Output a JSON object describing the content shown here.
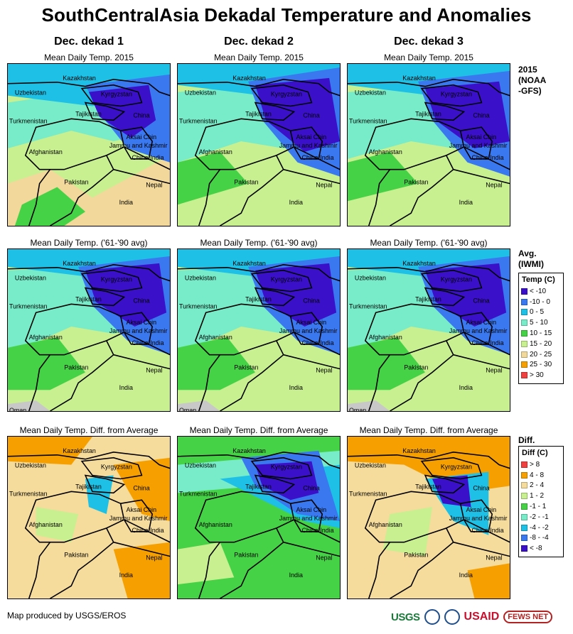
{
  "title": "SouthCentralAsia Dekadal Temperature and Anomalies",
  "columns": [
    "Dec. dekad 1",
    "Dec. dekad 2",
    "Dec. dekad 3"
  ],
  "row_subtitles": [
    "Mean Daily Temp. 2015",
    "Mean Daily Temp. ('61-'90 avg)",
    "Mean Daily Temp. Diff. from Average"
  ],
  "row_labels": [
    {
      "lines": [
        "2015",
        "(NOAA",
        "-GFS)"
      ]
    },
    {
      "lines": [
        "Avg.",
        "(IWMI)"
      ]
    },
    {
      "lines": [
        "Diff."
      ]
    }
  ],
  "place_labels": {
    "kazakhstan": "Kazakhstan",
    "uzbekistan": "Uzbekistan",
    "kyrgyzstan": "Kyrgyzstan",
    "tajikistan": "Tajikistan",
    "turkmenistan": "Turkmenistan",
    "china": "China",
    "aksai_chin": "Aksai Chin",
    "jammu_kashmir": "Jammu and Kashmir",
    "afghanistan": "Afghanistan",
    "china_india": "China/India",
    "pakistan": "Pakistan",
    "nepal": "Nepal",
    "india": "India",
    "oman": "Oman"
  },
  "temp_legend": {
    "title": "Temp (C)",
    "items": [
      {
        "label": "< -10",
        "color": "#3a10c8"
      },
      {
        "label": "-10 - 0",
        "color": "#3a78f0"
      },
      {
        "label": "0 - 5",
        "color": "#1ec0e6"
      },
      {
        "label": "5 - 10",
        "color": "#78ecc8"
      },
      {
        "label": "10 - 15",
        "color": "#46d246"
      },
      {
        "label": "15 - 20",
        "color": "#c8f090"
      },
      {
        "label": "20 - 25",
        "color": "#f2d89a"
      },
      {
        "label": "25 - 30",
        "color": "#f5a000"
      },
      {
        "label": "> 30",
        "color": "#f04040"
      }
    ]
  },
  "diff_legend": {
    "title": "Diff (C)",
    "items": [
      {
        "label": "> 8",
        "color": "#f04040"
      },
      {
        "label": "4 - 8",
        "color": "#f5a000"
      },
      {
        "label": "2 - 4",
        "color": "#f5dc9c"
      },
      {
        "label": "1 - 2",
        "color": "#c8f090"
      },
      {
        "label": "-1 - 1",
        "color": "#46d246"
      },
      {
        "label": "-2 - -1",
        "color": "#78ecc8"
      },
      {
        "label": "-4 - -2",
        "color": "#1ec0e6"
      },
      {
        "label": "-8 - -4",
        "color": "#3a78f0"
      },
      {
        "label": "< -8",
        "color": "#3a10c8"
      }
    ]
  },
  "footer": {
    "credit": "Map produced by USGS/EROS",
    "logos": [
      "USGS",
      "USAID",
      "FEWS NET"
    ]
  }
}
